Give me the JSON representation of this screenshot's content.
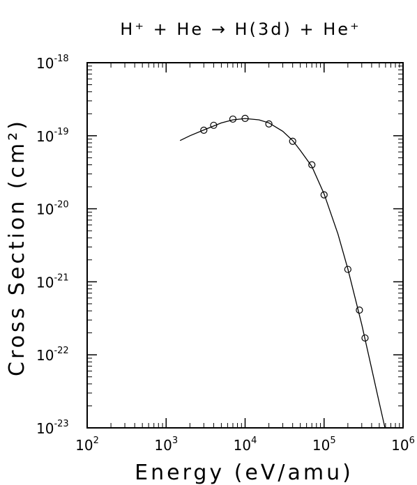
{
  "chart_data": {
    "type": "scatter",
    "title": "H⁺ + He → H(3d) + He⁺",
    "x_label": "Energy (eV/amu)",
    "y_label": "Cross Section (cm²)",
    "log_x": true,
    "log_y": true,
    "grid": false,
    "color": "#000000",
    "xlim": [
      100,
      1000000
    ],
    "ylim": [
      1e-23,
      1e-18
    ],
    "xticks": [
      {
        "value": 100,
        "label": "10",
        "exponent": "2"
      },
      {
        "value": 1000,
        "label": "10",
        "exponent": "3"
      },
      {
        "value": 10000,
        "label": "10",
        "exponent": "4"
      },
      {
        "value": 100000,
        "label": "10",
        "exponent": "5"
      },
      {
        "value": 1000000,
        "label": "10",
        "exponent": "6"
      }
    ],
    "yticks": [
      {
        "value": 1e-23,
        "label": "10",
        "exponent": "-23"
      },
      {
        "value": 1e-22,
        "label": "10",
        "exponent": "-22"
      },
      {
        "value": 1e-21,
        "label": "10",
        "exponent": "-21"
      },
      {
        "value": 1e-20,
        "label": "10",
        "exponent": "-20"
      },
      {
        "value": 1e-19,
        "label": "10",
        "exponent": "-19"
      },
      {
        "value": 1e-18,
        "label": "10",
        "exponent": "-18"
      }
    ],
    "points": {
      "x": [
        3000,
        4000,
        7000,
        10000,
        20000,
        40000,
        70000,
        100000,
        200000,
        280000,
        330000
      ],
      "y": [
        1.19e-19,
        1.39e-19,
        1.69e-19,
        1.73e-19,
        1.45e-19,
        8.4e-20,
        4e-20,
        1.55e-20,
        1.48e-21,
        4.1e-22,
        1.7e-22
      ]
    },
    "curve": {
      "x": [
        1500,
        2000,
        3000,
        5000,
        7000,
        10000,
        15000,
        20000,
        30000,
        40000,
        50000,
        70000,
        100000,
        150000,
        200000,
        300000,
        400000,
        500000,
        590000
      ],
      "y": [
        8.6e-20,
        1e-19,
        1.2e-19,
        1.5e-19,
        1.65e-19,
        1.72e-19,
        1.65e-19,
        1.5e-19,
        1.15e-19,
        8.6e-20,
        6.3e-20,
        3.8e-20,
        1.6e-20,
        4.5e-21,
        1.5e-21,
        2.6e-22,
        6.5e-23,
        2.2e-23,
        1e-23
      ]
    }
  }
}
